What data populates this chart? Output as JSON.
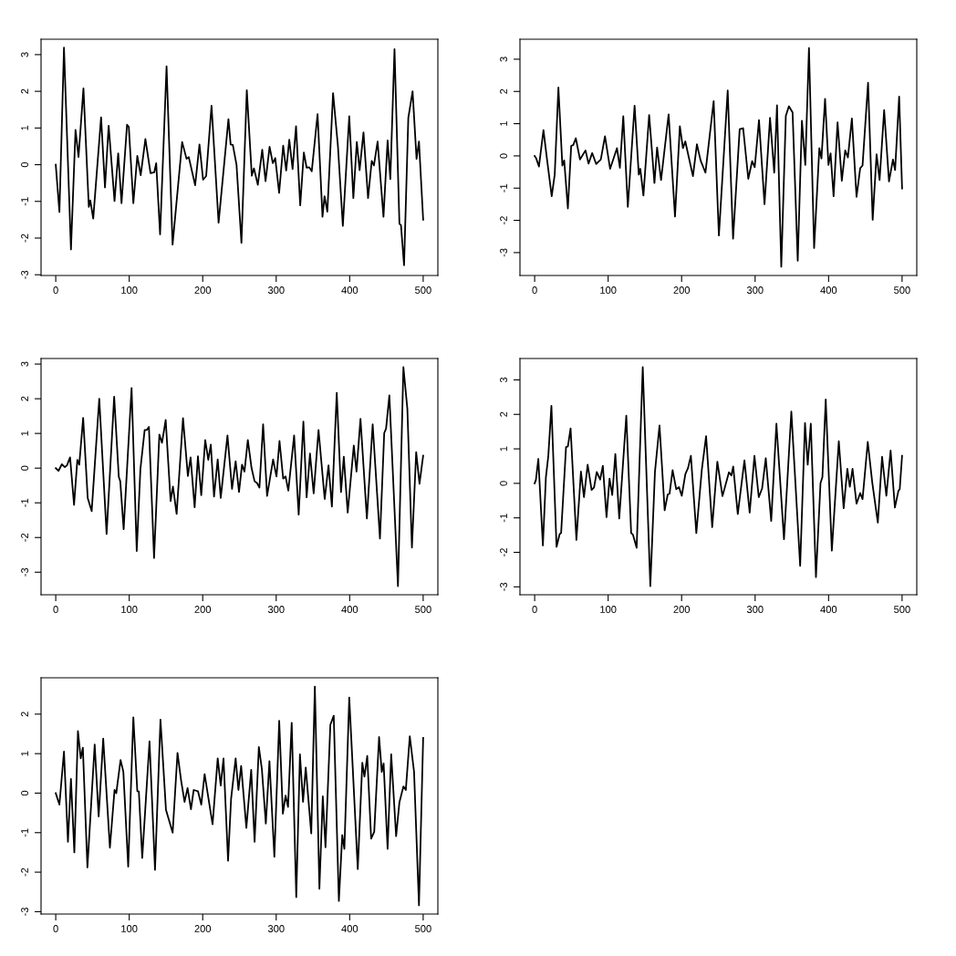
{
  "chart_data": [
    {
      "type": "line",
      "color": "#000000",
      "xlim": [
        -20,
        520
      ],
      "ylim": [
        -3.02,
        3.42
      ],
      "xticks": [
        0,
        100,
        200,
        300,
        400,
        500
      ],
      "yticks": [
        -3,
        -2,
        -1,
        0,
        1,
        2,
        3
      ],
      "x": [
        0,
        5,
        11.2,
        20.7,
        26.9,
        31,
        37.7,
        45,
        47,
        51,
        61.7,
        67,
        72,
        80,
        85,
        89.5,
        97,
        99.4,
        105.6,
        111,
        115.6,
        122,
        129,
        134,
        136.7,
        142,
        150.8,
        159,
        172,
        178,
        181,
        189.7,
        195.6,
        200.5,
        204.7,
        212,
        221.6,
        235,
        238,
        241,
        246,
        252.7,
        260,
        266.8,
        269.7,
        275,
        281,
        285.5,
        291,
        295.4,
        298.7,
        304,
        309.5,
        313.6,
        317.8,
        322.3,
        327,
        332.7,
        337.6,
        341.4,
        345,
        348.4,
        356.3,
        363,
        365.8,
        369.6,
        377.4,
        384,
        390.7,
        399.4,
        405,
        409.7,
        413.5,
        418.8,
        425,
        430,
        433,
        438,
        446,
        451.6,
        455.3,
        461,
        467.7,
        469.8,
        474,
        479.8,
        485.6,
        491,
        494.3,
        500
      ],
      "values": [
        0,
        -1.29,
        3.19,
        -2.31,
        0.95,
        0.21,
        2.08,
        -1.15,
        -0.97,
        -1.47,
        1.29,
        -0.62,
        1.06,
        -0.99,
        0.31,
        -1.05,
        1.09,
        1.03,
        -1.05,
        0.24,
        -0.29,
        0.7,
        -0.23,
        -0.21,
        0.04,
        -1.9,
        2.68,
        -2.18,
        0.62,
        0.16,
        0.21,
        -0.56,
        0.55,
        -0.41,
        -0.31,
        1.61,
        -1.58,
        1.24,
        0.55,
        0.54,
        0,
        -2.13,
        2.03,
        -0.3,
        -0.1,
        -0.55,
        0.41,
        -0.45,
        0.49,
        0.04,
        0.18,
        -0.77,
        0.52,
        -0.16,
        0.68,
        -0.12,
        1.05,
        -1.11,
        0.33,
        -0.08,
        -0.07,
        -0.18,
        1.38,
        -1.42,
        -0.86,
        -1.28,
        1.95,
        0.51,
        -1.67,
        1.32,
        -0.91,
        0.62,
        -0.15,
        0.88,
        -0.91,
        0.1,
        -0.02,
        0.63,
        -1.42,
        0.66,
        -0.39,
        3.15,
        -1.61,
        -1.65,
        -2.74,
        1.28,
        2.0,
        0.16,
        0.63,
        -1.5
      ]
    },
    {
      "type": "line",
      "color": "#000000",
      "xlim": [
        -20,
        520
      ],
      "ylim": [
        -3.71,
        3.62
      ],
      "xticks": [
        0,
        100,
        200,
        300,
        400,
        500
      ],
      "yticks": [
        -3,
        -2,
        -1,
        0,
        1,
        2,
        3
      ],
      "x": [
        0,
        2,
        5.8,
        12,
        16.6,
        23.2,
        27.3,
        32.3,
        37.7,
        40.2,
        45.2,
        49.7,
        52.6,
        56,
        61.7,
        69.2,
        73.3,
        78.3,
        83.7,
        90,
        95.7,
        102.7,
        112,
        116,
        120.6,
        126.8,
        136,
        141.7,
        143.8,
        148,
        155.8,
        163,
        166.6,
        172,
        182.3,
        191,
        197.6,
        201.8,
        205,
        215.4,
        220.8,
        225.8,
        232.4,
        243.6,
        250.7,
        262.7,
        270,
        279,
        283.7,
        290.7,
        296,
        299.5,
        305.3,
        312.8,
        320.3,
        326,
        329.8,
        335.6,
        341.8,
        346,
        351,
        358,
        363.7,
        368.3,
        373.3,
        380.3,
        387.4,
        390.3,
        395.2,
        399.8,
        402.7,
        406.8,
        412.2,
        418,
        422.6,
        426.3,
        431.7,
        438,
        443,
        446.2,
        453.7,
        460,
        465.3,
        469.4,
        475.6,
        482.2,
        487.6,
        490.5,
        496,
        500
      ],
      "values": [
        0,
        -0.07,
        -0.33,
        0.8,
        -0.07,
        -1.25,
        -0.58,
        2.12,
        -0.3,
        -0.14,
        -1.63,
        0.31,
        0.34,
        0.55,
        -0.11,
        0.17,
        -0.24,
        0.09,
        -0.25,
        -0.11,
        0.61,
        -0.4,
        0.24,
        -0.37,
        1.23,
        -1.58,
        1.56,
        -0.58,
        -0.4,
        -1.23,
        1.27,
        -0.84,
        0.26,
        -0.75,
        1.29,
        -1.88,
        0.92,
        0.24,
        0.45,
        -0.63,
        0.36,
        -0.14,
        -0.52,
        1.7,
        -2.47,
        2.03,
        -2.57,
        0.83,
        0.86,
        -0.71,
        -0.16,
        -0.35,
        1.11,
        -1.5,
        1.18,
        -0.52,
        1.57,
        -3.44,
        1.24,
        1.54,
        1.35,
        -3.25,
        1.09,
        -0.28,
        3.35,
        -2.86,
        0.24,
        -0.08,
        1.77,
        -0.28,
        0.08,
        -1.25,
        1.04,
        -0.77,
        0.17,
        -0.05,
        1.16,
        -1.27,
        -0.38,
        -0.3,
        2.27,
        -1.98,
        0.05,
        -0.75,
        1.42,
        -0.79,
        -0.11,
        -0.44,
        1.84,
        -1.01
      ]
    },
    {
      "type": "line",
      "color": "#000000",
      "xlim": [
        -20,
        520
      ],
      "ylim": [
        -3.65,
        3.16
      ],
      "xticks": [
        0,
        100,
        200,
        300,
        400,
        500
      ],
      "yticks": [
        -3,
        -2,
        -1,
        0,
        1,
        2,
        3
      ],
      "x": [
        0,
        3.7,
        8.3,
        12.4,
        15.3,
        19.5,
        24.9,
        29.4,
        32,
        37.3,
        43.5,
        48.9,
        59.2,
        69.2,
        79.5,
        85.8,
        87.8,
        92.4,
        103.2,
        110.2,
        115.2,
        121,
        124,
        126.8,
        133.8,
        141,
        144.6,
        149.6,
        156.3,
        159.5,
        164.5,
        173.2,
        179.8,
        183.5,
        189,
        193.5,
        198,
        203.4,
        207.6,
        211,
        215.4,
        220.4,
        224.5,
        233.7,
        239.9,
        244.8,
        249.4,
        253.5,
        256.8,
        261.4,
        266.4,
        270.6,
        273.9,
        277.2,
        282.2,
        287.6,
        295.8,
        300.4,
        304.5,
        309.5,
        312.8,
        316.5,
        324.4,
        330.6,
        337,
        341.4,
        346,
        351,
        357.6,
        366,
        371.2,
        375.8,
        382.4,
        388.2,
        392,
        397.3,
        405.6,
        409.3,
        414.7,
        423.4,
        431.3,
        441.2,
        447,
        449.5,
        454,
        465.7,
        473.1,
        478.5,
        484.7,
        490.5,
        495,
        500
      ],
      "values": [
        0,
        -0.08,
        0.11,
        0.03,
        0.08,
        0.31,
        -1.06,
        0.24,
        0.1,
        1.45,
        -0.86,
        -1.24,
        2.0,
        -1.9,
        2.06,
        -0.25,
        -0.38,
        -1.76,
        2.31,
        -2.39,
        -0.03,
        1.1,
        1.1,
        1.19,
        -2.59,
        0.97,
        0.73,
        1.39,
        -0.95,
        -0.53,
        -1.32,
        1.44,
        -0.23,
        0.31,
        -1.13,
        0.34,
        -0.78,
        0.81,
        0.24,
        0.68,
        -0.82,
        0.25,
        -0.86,
        0.94,
        -0.6,
        0.2,
        -0.69,
        0.1,
        -0.1,
        0.81,
        0.01,
        -0.38,
        -0.43,
        -0.56,
        1.26,
        -0.8,
        0.25,
        -0.24,
        0.78,
        -0.3,
        -0.24,
        -0.65,
        0.94,
        -1.34,
        1.34,
        -0.84,
        0.42,
        -0.73,
        1.1,
        -0.89,
        0.08,
        -1.11,
        2.17,
        -0.69,
        0.33,
        -1.28,
        0.65,
        -0.1,
        1.42,
        -1.45,
        1.26,
        -2.03,
        1.01,
        1.14,
        2.1,
        -3.4,
        2.91,
        1.71,
        -2.29,
        0.46,
        -0.45,
        0.36
      ]
    },
    {
      "type": "line",
      "color": "#000000",
      "xlim": [
        -20,
        520
      ],
      "ylim": [
        -3.23,
        3.62
      ],
      "xticks": [
        0,
        100,
        200,
        300,
        400,
        500
      ],
      "yticks": [
        -3,
        -2,
        -1,
        0,
        1,
        2,
        3
      ],
      "x": [
        0,
        1.7,
        5,
        11.2,
        15.3,
        18.6,
        22.8,
        29.8,
        34,
        36,
        42.7,
        45.2,
        48.9,
        56.8,
        63,
        67.1,
        72.1,
        77.5,
        80.8,
        84.5,
        89.1,
        92.8,
        97.8,
        101.9,
        105.6,
        109.8,
        115.1,
        124.7,
        131.3,
        133.8,
        138.8,
        147.1,
        157.4,
        163.7,
        169.9,
        176.9,
        181.1,
        183.6,
        187.7,
        192.7,
        196.4,
        200.2,
        205.1,
        208.8,
        212.6,
        220,
        227.5,
        233.3,
        241.6,
        248.6,
        255.6,
        264.4,
        267.7,
        270.2,
        276.4,
        285.5,
        292.6,
        299.1,
        305,
        309.5,
        314.5,
        321.9,
        329,
        339.3,
        349.3,
        361.3,
        367.9,
        371.6,
        375.8,
        382.8,
        389,
        391.6,
        396.1,
        404.4,
        413.9,
        420.5,
        425.5,
        428.9,
        432.6,
        438,
        443,
        446.2,
        453.3,
        459.5,
        467,
        472.8,
        478.6,
        484.4,
        490.2,
        495.1,
        496.8,
        500
      ],
      "values": [
        0,
        0.1,
        0.71,
        -1.8,
        0.18,
        0.8,
        2.25,
        -1.84,
        -1.47,
        -1.44,
        1.05,
        1.07,
        1.59,
        -1.64,
        0.34,
        -0.4,
        0.54,
        -0.19,
        -0.12,
        0.33,
        0.11,
        0.51,
        -0.98,
        0.14,
        -0.34,
        0.85,
        -1.02,
        1.96,
        -1.44,
        -1.49,
        -1.87,
        3.37,
        -2.98,
        0.33,
        1.68,
        -0.78,
        -0.32,
        -0.3,
        0.38,
        -0.17,
        -0.11,
        -0.36,
        0.27,
        0.45,
        0.8,
        -1.44,
        0.4,
        1.37,
        -1.27,
        0.63,
        -0.37,
        0.32,
        0.23,
        0.49,
        -0.89,
        0.67,
        -0.85,
        0.8,
        -0.4,
        -0.15,
        0.73,
        -1.09,
        1.73,
        -1.62,
        2.08,
        -2.39,
        1.75,
        0.54,
        1.73,
        -2.72,
        0.01,
        0.18,
        2.43,
        -1.95,
        1.22,
        -0.72,
        0.42,
        -0.1,
        0.42,
        -0.59,
        -0.28,
        -0.46,
        1.2,
        0.01,
        -1.14,
        0.77,
        -0.36,
        0.95,
        -0.7,
        -0.21,
        -0.17,
        0.8
      ]
    },
    {
      "type": "line",
      "color": "#000000",
      "xlim": [
        -20,
        520
      ],
      "ylim": [
        -3.06,
        2.92
      ],
      "xticks": [
        0,
        100,
        200,
        300,
        400,
        500
      ],
      "yticks": [
        -3,
        -2,
        -1,
        0,
        1,
        2
      ],
      "x": [
        0,
        5,
        11.2,
        16.6,
        20.7,
        25.3,
        30.2,
        34,
        36.9,
        43.1,
        53,
        58.4,
        64.6,
        73.7,
        80,
        82.4,
        88.2,
        92,
        98.6,
        105.6,
        111,
        113.1,
        117.7,
        127.6,
        135.1,
        142.5,
        150,
        159.1,
        165.7,
        170.7,
        175.3,
        179.4,
        184,
        187.7,
        193.5,
        198,
        202.6,
        213.4,
        220.4,
        224.5,
        228.3,
        234.5,
        238.6,
        244.8,
        248.6,
        252.3,
        259.4,
        266,
        270.6,
        276.4,
        280.5,
        285.9,
        290.8,
        297.5,
        304.1,
        309.1,
        312.8,
        316.1,
        321.1,
        327.3,
        332.3,
        336.5,
        340.2,
        347.7,
        352.6,
        358.8,
        363.4,
        367.1,
        373.7,
        378.3,
        385.3,
        389.9,
        392.8,
        399.4,
        411,
        417.2,
        420.1,
        423.9,
        429.2,
        433.4,
        440,
        443.7,
        446.2,
        451.6,
        456.5,
        463.2,
        467.7,
        473.1,
        476.4,
        481.8,
        487.6,
        494.3,
        500
      ],
      "values": [
        0,
        -0.29,
        1.05,
        -1.23,
        0.36,
        -1.5,
        1.57,
        0.88,
        1.15,
        -1.88,
        1.23,
        -0.59,
        1.38,
        -1.38,
        0.08,
        0,
        0.84,
        0.54,
        -1.86,
        1.92,
        0.05,
        0.04,
        -1.64,
        1.31,
        -1.94,
        1.86,
        -0.42,
        -1.0,
        1.02,
        0.31,
        -0.22,
        0.13,
        -0.41,
        0.08,
        0.05,
        -0.29,
        0.48,
        -0.79,
        0.88,
        0.19,
        0.88,
        -1.71,
        -0.15,
        0.88,
        0.08,
        0.69,
        -0.88,
        0.59,
        -1.23,
        1.17,
        0.61,
        -0.77,
        0.81,
        -1.61,
        1.83,
        -0.52,
        -0.06,
        -0.35,
        1.78,
        -2.63,
        0.98,
        -0.22,
        0.65,
        -1.02,
        2.7,
        -2.42,
        -0.08,
        -1.37,
        1.73,
        1.96,
        -2.73,
        -1.06,
        -1.41,
        2.42,
        -1.92,
        0.77,
        0.42,
        0.94,
        -1.15,
        -0.98,
        1.42,
        0.54,
        0.75,
        -1.41,
        0.98,
        -1.09,
        -0.23,
        0.17,
        0.08,
        1.44,
        0.54,
        -2.84,
        1.4
      ]
    }
  ]
}
